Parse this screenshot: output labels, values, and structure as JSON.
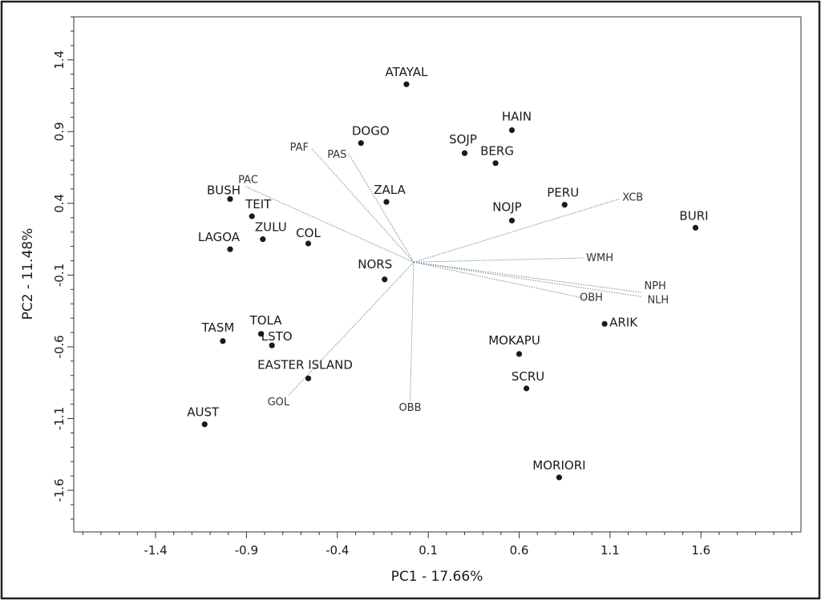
{
  "chart_data": {
    "type": "scatter",
    "xlabel": "PC1 - 17.66%",
    "ylabel": "PC2 - 11.48%",
    "xlim": [
      -1.85,
      2.15
    ],
    "ylim": [
      -1.89,
      1.7
    ],
    "xticks": [
      -1.4,
      -0.9,
      -0.4,
      0.1,
      0.6,
      1.1,
      1.6
    ],
    "yticks": [
      1.4,
      0.9,
      0.4,
      -0.1,
      -0.6,
      -1.1,
      -1.6
    ],
    "x_minor_step": 0.1,
    "y_minor_step": 0.1,
    "origin": [
      0.02,
      -0.01
    ],
    "points": [
      {
        "label": "ATAYAL",
        "x": -0.02,
        "y": 1.23
      },
      {
        "label": "HAIN",
        "x": 0.56,
        "y": 0.91
      },
      {
        "label": "DOGO",
        "x": -0.27,
        "y": 0.82
      },
      {
        "label": "SOJP",
        "x": 0.3,
        "y": 0.75
      },
      {
        "label": "BERG",
        "x": 0.47,
        "y": 0.68
      },
      {
        "label": "BUSH",
        "x": -0.99,
        "y": 0.43
      },
      {
        "label": "ZALA",
        "x": -0.13,
        "y": 0.41
      },
      {
        "label": "PERU",
        "x": 0.85,
        "y": 0.39
      },
      {
        "label": "TEIT",
        "x": -0.87,
        "y": 0.31
      },
      {
        "label": "NOJP",
        "x": 0.56,
        "y": 0.28
      },
      {
        "label": "BURI",
        "x": 1.57,
        "y": 0.23
      },
      {
        "label": "ZULU",
        "x": -0.81,
        "y": 0.15
      },
      {
        "label": "COL",
        "x": -0.56,
        "y": 0.12
      },
      {
        "label": "LAGOA",
        "x": -0.99,
        "y": 0.08
      },
      {
        "label": "NORS",
        "x": -0.14,
        "y": -0.13
      },
      {
        "label": "ARIK",
        "x": 1.07,
        "y": -0.44
      },
      {
        "label": "TOLA",
        "x": -0.82,
        "y": -0.51
      },
      {
        "label": "TASM",
        "x": -1.03,
        "y": -0.56
      },
      {
        "label": "LSTO",
        "x": -0.76,
        "y": -0.59
      },
      {
        "label": "MOKAPU",
        "x": 0.6,
        "y": -0.65
      },
      {
        "label": "EASTER ISLAND",
        "x": -0.56,
        "y": -0.82
      },
      {
        "label": "SCRU",
        "x": 0.64,
        "y": -0.89
      },
      {
        "label": "AUST",
        "x": -1.13,
        "y": -1.14
      },
      {
        "label": "MORIORI",
        "x": 0.82,
        "y": -1.51
      }
    ],
    "vectors": [
      {
        "label": "PAF",
        "x": -0.54,
        "y": 0.78
      },
      {
        "label": "PAS",
        "x": -0.34,
        "y": 0.75
      },
      {
        "label": "PAC",
        "x": -0.91,
        "y": 0.52
      },
      {
        "label": "XCB",
        "x": 1.15,
        "y": 0.43
      },
      {
        "label": "WMH",
        "x": 0.96,
        "y": 0.02
      },
      {
        "label": "NPH",
        "x": 1.27,
        "y": -0.22
      },
      {
        "label": "NLH",
        "x": 1.27,
        "y": -0.25
      },
      {
        "label": "OBH",
        "x": 1.03,
        "y": -0.28
      },
      {
        "label": "GOL",
        "x": -0.67,
        "y": -0.94
      },
      {
        "label": "OBB",
        "x": 0.0,
        "y": -0.98
      }
    ]
  }
}
